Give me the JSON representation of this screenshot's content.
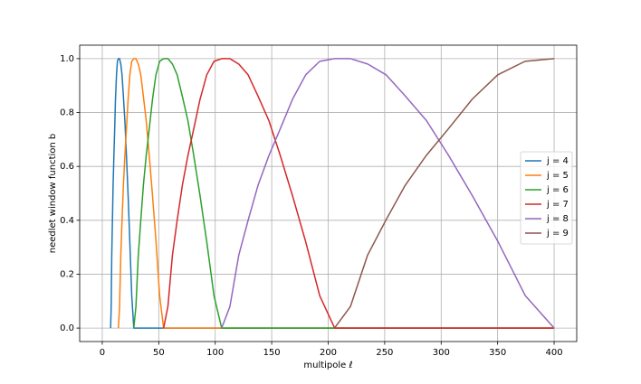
{
  "chart_data": {
    "type": "line",
    "xlabel": "multipole ℓ",
    "ylabel": "needlet window function b",
    "xlim": [
      -20,
      420
    ],
    "ylim": [
      -0.05,
      1.05
    ],
    "xticks": [
      0,
      50,
      100,
      150,
      200,
      250,
      300,
      350,
      400
    ],
    "yticks": [
      {
        "value": 0,
        "label": "0.0"
      },
      {
        "value": 0.2,
        "label": "0.2"
      },
      {
        "value": 0.4,
        "label": "0.4"
      },
      {
        "value": 0.6,
        "label": "0.6"
      },
      {
        "value": 0.8,
        "label": "0.8"
      },
      {
        "value": 1,
        "label": "1.0"
      }
    ],
    "grid": true,
    "legend": "right",
    "series": [
      {
        "name": "j = 4",
        "color": "#1f77b4",
        "x": [
          7.4,
          7.9,
          8.4,
          9.0,
          9.6,
          10.3,
          11.0,
          11.7,
          12.6,
          13.4,
          14.3,
          15.3,
          16.4,
          17.5,
          18.7,
          20.0,
          21.4,
          22.9,
          24.4,
          26.1,
          27.9,
          400
        ],
        "values": [
          0,
          0.08,
          0.27,
          0.4,
          0.53,
          0.64,
          0.74,
          0.85,
          0.94,
          0.99,
          1,
          1,
          0.98,
          0.94,
          0.86,
          0.77,
          0.64,
          0.49,
          0.32,
          0.12,
          0,
          0
        ]
      },
      {
        "name": "j = 5",
        "color": "#ff7f0e",
        "x": [
          14.3,
          15.3,
          16.4,
          17.5,
          18.7,
          20.0,
          21.4,
          22.9,
          24.4,
          26.1,
          27.9,
          29.8,
          31.9,
          34.1,
          36.4,
          38.9,
          41.6,
          44.5,
          47.6,
          50.8,
          54.3,
          400
        ],
        "values": [
          0,
          0.08,
          0.27,
          0.4,
          0.53,
          0.64,
          0.74,
          0.85,
          0.94,
          0.99,
          1,
          1,
          0.98,
          0.94,
          0.86,
          0.77,
          0.64,
          0.49,
          0.32,
          0.12,
          0,
          0
        ]
      },
      {
        "name": "j = 6",
        "color": "#2ca02c",
        "x": [
          27.9,
          29.8,
          31.9,
          34.1,
          36.4,
          38.9,
          41.6,
          44.5,
          47.5,
          50.8,
          54.3,
          58.1,
          62.1,
          66.3,
          70.9,
          75.8,
          81.0,
          86.6,
          92.5,
          98.9,
          105.7,
          400
        ],
        "values": [
          0,
          0.08,
          0.27,
          0.4,
          0.53,
          0.64,
          0.74,
          0.85,
          0.94,
          0.99,
          1,
          1,
          0.98,
          0.94,
          0.86,
          0.77,
          0.64,
          0.49,
          0.32,
          0.12,
          0,
          0
        ]
      },
      {
        "name": "j = 7",
        "color": "#d62728",
        "x": [
          54.3,
          58.1,
          62.1,
          66.3,
          70.9,
          75.8,
          81.0,
          86.6,
          92.5,
          98.9,
          105.7,
          113.0,
          120.8,
          129.1,
          138.0,
          147.5,
          157.6,
          168.5,
          180.1,
          192.5,
          205.7,
          400
        ],
        "values": [
          0,
          0.08,
          0.27,
          0.4,
          0.53,
          0.64,
          0.74,
          0.85,
          0.94,
          0.99,
          1,
          1,
          0.98,
          0.94,
          0.86,
          0.77,
          0.64,
          0.49,
          0.32,
          0.12,
          0,
          0
        ]
      },
      {
        "name": "j = 8",
        "color": "#9467bd",
        "x": [
          105.7,
          113.0,
          120.8,
          129.1,
          137.9,
          147.5,
          157.6,
          168.5,
          180.1,
          192.5,
          205.7,
          219.9,
          235.0,
          251.2,
          268.5,
          287.0,
          306.7,
          327.8,
          350.4,
          374.5,
          400
        ],
        "values": [
          0,
          0.08,
          0.27,
          0.4,
          0.53,
          0.64,
          0.74,
          0.85,
          0.94,
          0.99,
          1,
          1,
          0.98,
          0.94,
          0.86,
          0.77,
          0.64,
          0.49,
          0.32,
          0.12,
          0
        ]
      },
      {
        "name": "j = 9",
        "color": "#8c564b",
        "x": [
          205.6,
          219.7,
          234.8,
          251.0,
          268.2,
          286.7,
          306.5,
          327.6,
          350.1,
          374.2,
          400
        ],
        "values": [
          0,
          0.08,
          0.27,
          0.4,
          0.53,
          0.64,
          0.74,
          0.85,
          0.94,
          0.99,
          1
        ]
      }
    ]
  }
}
